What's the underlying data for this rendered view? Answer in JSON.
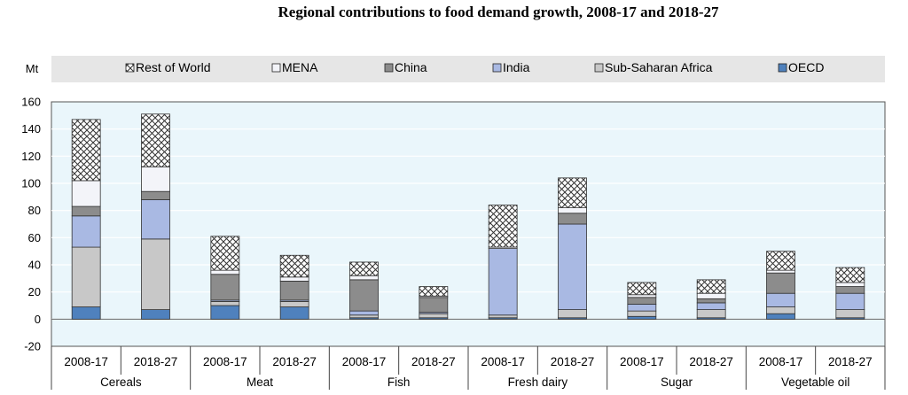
{
  "chart_data": {
    "type": "bar",
    "stacked": true,
    "title": "Regional contributions to food demand growth, 2008-17 and 2018-27",
    "ylabel": "Mt",
    "ylim": [
      -20,
      160
    ],
    "yticks": [
      -20,
      0,
      20,
      40,
      60,
      80,
      100,
      120,
      140,
      160
    ],
    "groups": [
      "Cereals",
      "Meat",
      "Fish",
      "Fresh dairy",
      "Sugar",
      "Vegetable oil"
    ],
    "periods": [
      "2008-17",
      "2018-27"
    ],
    "categories": [
      "2008-17",
      "2018-27",
      "2008-17",
      "2018-27",
      "2008-17",
      "2018-27",
      "2008-17",
      "2018-27",
      "2008-17",
      "2018-27",
      "2008-17",
      "2018-27"
    ],
    "legend_order": [
      "Rest of World",
      "MENA",
      "China",
      "India",
      "Sub-Saharan Africa",
      "OECD"
    ],
    "series": [
      {
        "name": "OECD",
        "color": "#4f81bd",
        "values": [
          9,
          7,
          10,
          9,
          1,
          1,
          1,
          1,
          2,
          1,
          4,
          1
        ]
      },
      {
        "name": "Sub-Saharan Africa",
        "color": "#c8c8c8",
        "values": [
          44,
          52,
          3,
          4,
          2,
          3,
          2,
          6,
          4,
          6,
          5,
          6
        ]
      },
      {
        "name": "India",
        "color": "#a9b9e3",
        "values": [
          23,
          29,
          1,
          1,
          3,
          1,
          49,
          63,
          5,
          5,
          10,
          12
        ]
      },
      {
        "name": "China",
        "color": "#8c8c8c",
        "values": [
          7,
          6,
          19,
          14,
          23,
          11,
          0,
          8,
          5,
          3,
          15,
          5
        ]
      },
      {
        "name": "MENA",
        "color": "#f3f4f9",
        "values": [
          19,
          18,
          3,
          3,
          3,
          1,
          1,
          4,
          2,
          4,
          2,
          3
        ]
      },
      {
        "name": "Rest of World",
        "color": "#ffffff",
        "pattern": "crosshatch",
        "values": [
          45,
          39,
          25,
          16,
          10,
          7,
          31,
          22,
          9,
          10,
          14,
          11
        ]
      }
    ]
  }
}
